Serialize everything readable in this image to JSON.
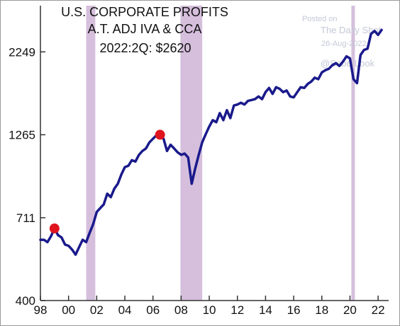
{
  "chart_data": {
    "type": "line",
    "title_lines": [
      "U.S. CORPORATE PROFITS",
      "A.T. ADJ IVA & CCA",
      "2022:2Q: $2620"
    ],
    "xlabel": "",
    "ylabel": "",
    "x_ticks": [
      "98",
      "00",
      "02",
      "04",
      "06",
      "08",
      "10",
      "12",
      "14",
      "16",
      "18",
      "20",
      "22"
    ],
    "y_ticks": [
      "400",
      "711",
      "1265",
      "2249"
    ],
    "y_scale": "log",
    "ylim": [
      400,
      3100
    ],
    "xlim": [
      1998.0,
      2022.75
    ],
    "grid": false,
    "line_color": "#1a1a8c",
    "recession_color": "#d5bfdc",
    "marker_color": "#e0141e",
    "recessions": [
      [
        2001.25,
        2001.9
      ],
      [
        2007.95,
        2009.5
      ],
      [
        2020.1,
        2020.35
      ]
    ],
    "markers": [
      {
        "x": 1999.0,
        "y": 660
      },
      {
        "x": 2006.5,
        "y": 1265
      }
    ],
    "series": [
      {
        "x": [
          1998.0,
          1998.25,
          1998.5,
          1998.75,
          1999.0,
          1999.25,
          1999.5,
          1999.75,
          2000.0,
          2000.25,
          2000.5,
          2000.75,
          2001.0,
          2001.25,
          2001.5,
          2001.75,
          2002.0,
          2002.25,
          2002.5,
          2002.75,
          2003.0,
          2003.25,
          2003.5,
          2003.75,
          2004.0,
          2004.25,
          2004.5,
          2004.75,
          2005.0,
          2005.25,
          2005.5,
          2005.75,
          2006.0,
          2006.25,
          2006.5,
          2006.75,
          2007.0,
          2007.25,
          2007.5,
          2007.75,
          2008.0,
          2008.25,
          2008.5,
          2008.75,
          2009.0,
          2009.25,
          2009.5,
          2009.75,
          2010.0,
          2010.25,
          2010.5,
          2010.75,
          2011.0,
          2011.25,
          2011.5,
          2011.75,
          2012.0,
          2012.25,
          2012.5,
          2012.75,
          2013.0,
          2013.25,
          2013.5,
          2013.75,
          2014.0,
          2014.25,
          2014.5,
          2014.75,
          2015.0,
          2015.25,
          2015.5,
          2015.75,
          2016.0,
          2016.25,
          2016.5,
          2016.75,
          2017.0,
          2017.25,
          2017.5,
          2017.75,
          2018.0,
          2018.25,
          2018.5,
          2018.75,
          2019.0,
          2019.25,
          2019.5,
          2019.75,
          2020.0,
          2020.25,
          2020.5,
          2020.75,
          2021.0,
          2021.25,
          2021.5,
          2021.75,
          2022.0,
          2022.25
        ],
        "values": [
          610,
          610,
          600,
          625,
          660,
          630,
          620,
          590,
          585,
          570,
          550,
          580,
          610,
          600,
          640,
          680,
          740,
          760,
          780,
          840,
          820,
          870,
          900,
          960,
          1010,
          1020,
          1060,
          1050,
          1100,
          1130,
          1150,
          1200,
          1230,
          1260,
          1265,
          1230,
          1130,
          1180,
          1150,
          1120,
          1100,
          1110,
          1080,
          900,
          1000,
          1100,
          1200,
          1270,
          1340,
          1400,
          1380,
          1470,
          1400,
          1500,
          1420,
          1550,
          1560,
          1580,
          1560,
          1600,
          1610,
          1620,
          1650,
          1620,
          1700,
          1750,
          1680,
          1760,
          1740,
          1700,
          1720,
          1650,
          1640,
          1700,
          1760,
          1750,
          1800,
          1830,
          1880,
          1860,
          1950,
          1980,
          2000,
          2050,
          2080,
          2040,
          2100,
          2180,
          2150,
          1860,
          1810,
          2200,
          2280,
          2300,
          2550,
          2600,
          2530,
          2620
        ]
      }
    ]
  },
  "watermark": {
    "posted_on": "Posted on",
    "source": "The Daily Shot",
    "date": "26-Aug-2022",
    "handle": "@SoberLook"
  }
}
